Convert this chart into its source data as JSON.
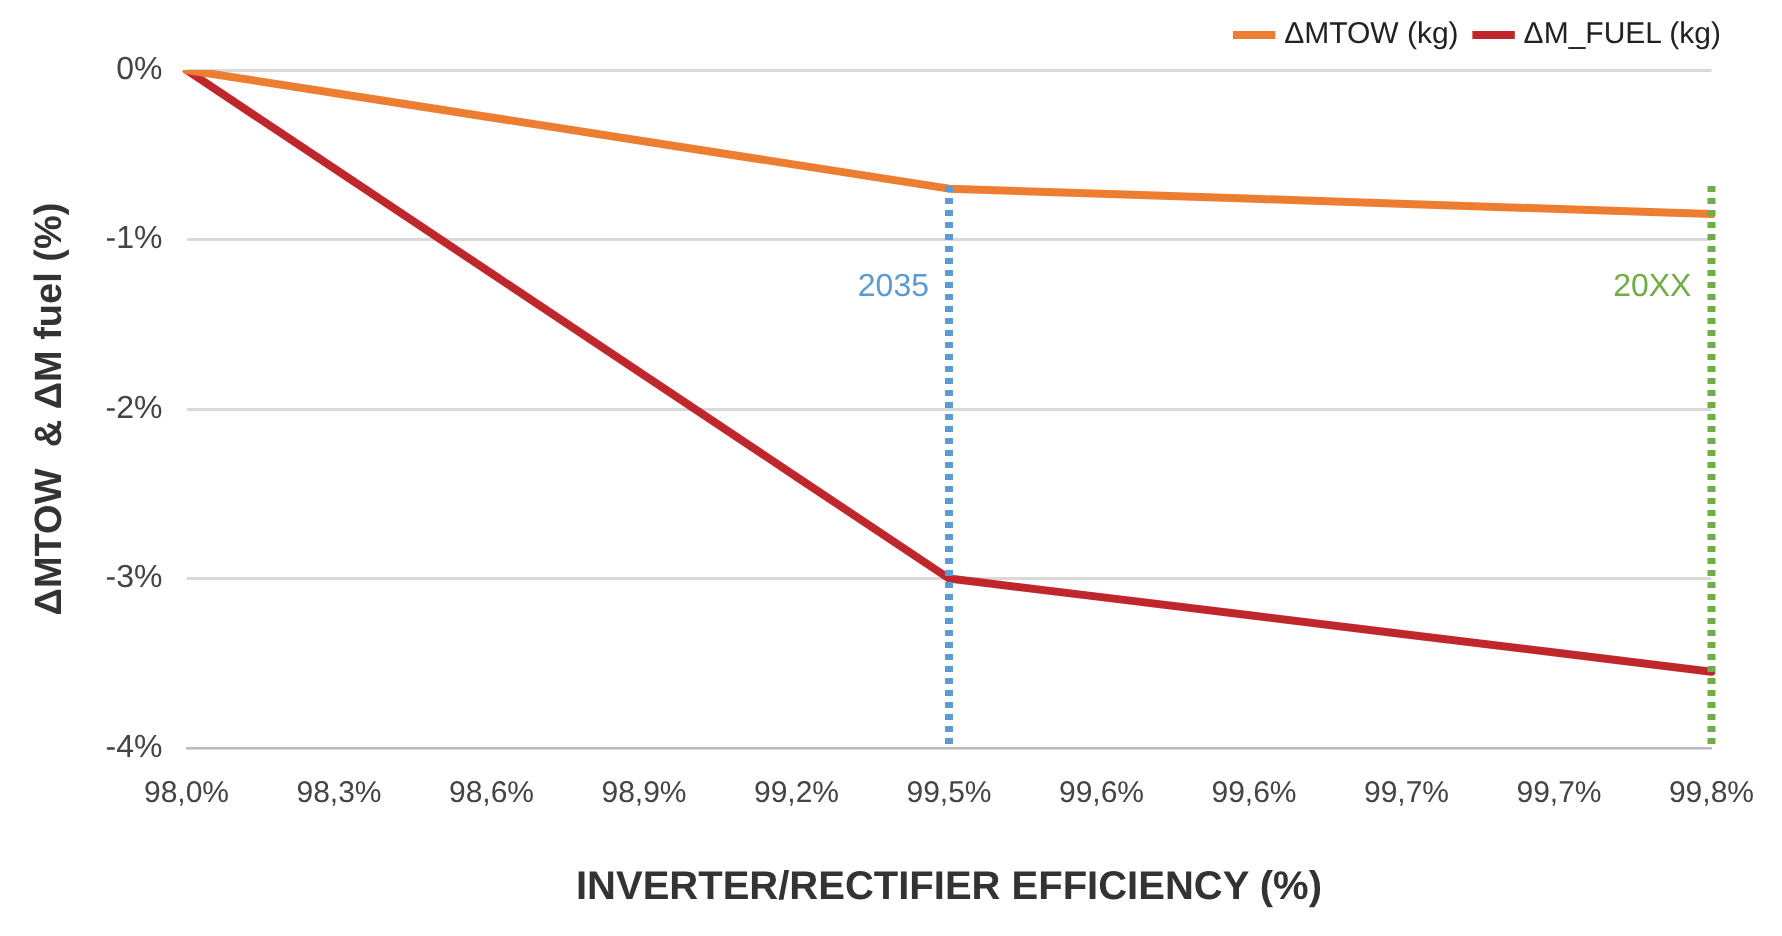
{
  "chart_data": {
    "type": "line",
    "xlabel": "INVERTER/RECTIFIER EFFICIENCY (%)",
    "ylabel": "ΔMTOW  & ΔM fuel (%)",
    "categories": [
      "98,0%",
      "98,3%",
      "98,6%",
      "98,9%",
      "99,2%",
      "99,5%",
      "99,6%",
      "99,6%",
      "99,7%",
      "99,7%",
      "99,8%"
    ],
    "series": [
      {
        "name": "ΔMTOW (kg)",
        "color": "#ed7d31",
        "values": [
          0,
          -0.14,
          -0.28,
          -0.42,
          -0.56,
          -0.7,
          -0.73,
          -0.76,
          -0.79,
          -0.82,
          -0.85
        ]
      },
      {
        "name": "ΔM_FUEL (kg)",
        "color": "#c0272d",
        "values": [
          0,
          -0.6,
          -1.2,
          -1.8,
          -2.4,
          -3,
          -3.11,
          -3.22,
          -3.33,
          -3.44,
          -3.55
        ]
      }
    ],
    "ylim": [
      -4,
      0
    ],
    "yticks": [
      {
        "value": -4,
        "label": "-4%"
      },
      {
        "value": -3,
        "label": "-3%"
      },
      {
        "value": -2,
        "label": "-2%"
      },
      {
        "value": -1,
        "label": "-1%"
      },
      {
        "value": 0,
        "label": "0%"
      }
    ],
    "ref_lines": [
      {
        "axis": "x",
        "value": "99,5%",
        "label": "2035",
        "color": "#5b9bd5",
        "line_style": "dotted"
      },
      {
        "axis": "x",
        "value": "99,8%",
        "label": "20XX",
        "color": "#70ad47",
        "line_style": "dotted"
      }
    ],
    "grid": "y",
    "legend": "top right",
    "marker": "none",
    "line_style": "solid"
  }
}
